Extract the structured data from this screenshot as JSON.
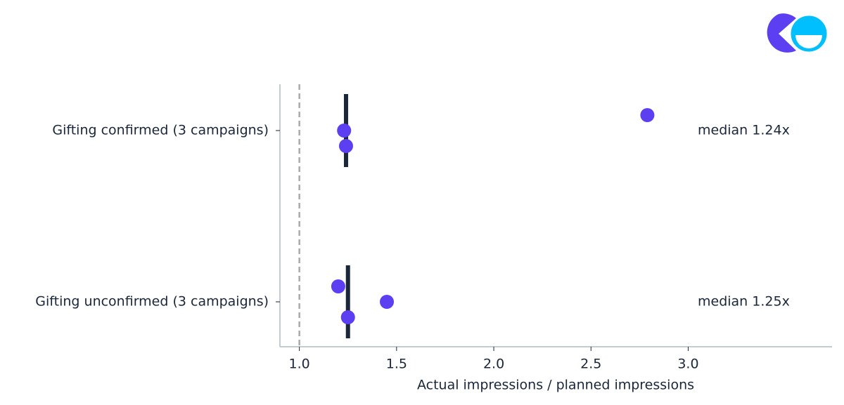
{
  "chart_data": {
    "type": "strip",
    "xlabel": "Actual impressions / planned impressions",
    "categories": [
      "Gifting confirmed (3 campaigns)",
      "Gifting unconfirmed (3 campaigns)"
    ],
    "values": [
      [
        2.79,
        1.23,
        1.24
      ],
      [
        1.2,
        1.45,
        1.25
      ]
    ],
    "medians": [
      1.24,
      1.25
    ],
    "median_labels": [
      "median 1.24x",
      "median 1.25x"
    ],
    "color": "#5b3ff0",
    "median_color": "#1a2639",
    "reference_line": 1.0,
    "xlim": [
      0.9,
      3.74
    ],
    "xticks": [
      {
        "value": 1.0,
        "label": "1.0"
      },
      {
        "value": 1.5,
        "label": "1.5"
      },
      {
        "value": 2.0,
        "label": "2.0"
      },
      {
        "value": 2.5,
        "label": "2.5"
      },
      {
        "value": 3.0,
        "label": "3.0"
      }
    ]
  }
}
